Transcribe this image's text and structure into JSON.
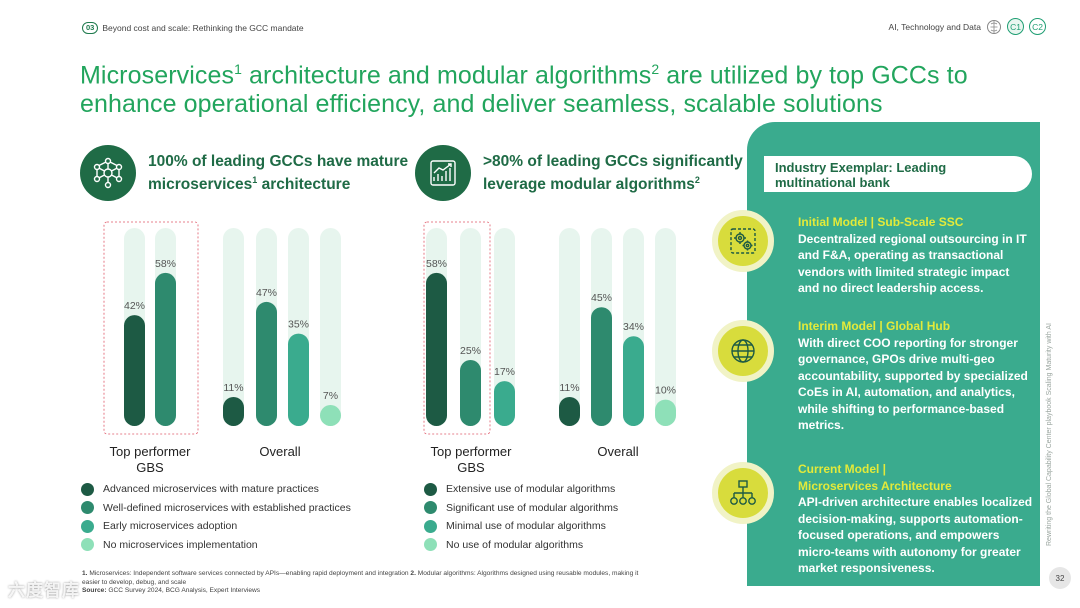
{
  "header": {
    "section_number": "03",
    "section_title": "Beyond cost and scale: Rethinking the GCC mandate",
    "topic": "AI, Technology and Data",
    "chips": [
      "C1",
      "C2"
    ]
  },
  "headline": {
    "part1": "Microservices",
    "sup1": "1",
    "part2": " architecture and modular algorithms",
    "sup2": "2",
    "part3": " are utilized by top GCCs to enhance operational efficiency, and deliver seamless, scalable solutions"
  },
  "left_stat": {
    "line1": "100% of leading GCCs have mature",
    "line2a": "microservices",
    "sup": "1",
    "line2b": " architecture",
    "icon": "network-nodes-icon"
  },
  "right_stat": {
    "line1": ">80% of leading GCCs significantly",
    "line2": "leverage modular algorithms",
    "sup": "2",
    "icon": "growth-chart-icon"
  },
  "colors": {
    "dark": "#1d5a44",
    "mid": "#2e8a6e",
    "teal": "#3aab8e",
    "light": "#8ee0b8",
    "track": "#e7f5ee",
    "green_text": "#22a55d",
    "highlight_border": "#e05a6a"
  },
  "chart_data": [
    {
      "type": "bar",
      "groups": [
        "Top performer GBS",
        "Overall"
      ],
      "series": [
        {
          "name": "Advanced microservices with mature practices",
          "color": "#1d5a44",
          "values": [
            42,
            11
          ]
        },
        {
          "name": "Well-defined microservices with established practices",
          "color": "#2e8a6e",
          "values": [
            58,
            47
          ]
        },
        {
          "name": "Early microservices adoption",
          "color": "#3aab8e",
          "values": [
            null,
            35
          ]
        },
        {
          "name": "No microservices implementation",
          "color": "#8ee0b8",
          "values": [
            null,
            7
          ]
        }
      ],
      "ylim": [
        0,
        75
      ]
    },
    {
      "type": "bar",
      "groups": [
        "Top performer GBS",
        "Overall"
      ],
      "series": [
        {
          "name": "Extensive use of modular algorithms",
          "color": "#1d5a44",
          "values": [
            58,
            11
          ]
        },
        {
          "name": "Significant use of modular algorithms",
          "color": "#2e8a6e",
          "values": [
            25,
            45
          ]
        },
        {
          "name": "Minimal use of modular algorithms",
          "color": "#3aab8e",
          "values": [
            17,
            34
          ]
        },
        {
          "name": "No use of modular algorithms",
          "color": "#8ee0b8",
          "values": [
            null,
            10
          ]
        }
      ],
      "ylim": [
        0,
        75
      ]
    }
  ],
  "group_labels": {
    "left_top_line1": "Top performer",
    "left_top_line2": "GBS",
    "left_overall": "Overall",
    "right_top_line1": "Top performer",
    "right_top_line2": "GBS",
    "right_overall": "Overall"
  },
  "exemplar": {
    "title_line1": "Industry Exemplar: Leading",
    "title_line2": "multinational bank",
    "models": [
      {
        "icon": "gears-icon",
        "title": "Initial Model | Sub-Scale SSC",
        "body": "Decentralized regional outsourcing in IT and F&A, operating as transactional vendors with limited strategic impact and no direct leadership access."
      },
      {
        "icon": "globe-icon",
        "title": "Interim Model | Global Hub",
        "body": "With direct COO reporting for stronger governance, GPOs drive multi-geo accountability, supported by specialized CoEs in AI, automation, and analytics, while shifting to performance-based metrics."
      },
      {
        "icon": "hierarchy-icon",
        "title_line1": "Current Model |",
        "title_line2": "Microservices Architecture",
        "body": "API-driven architecture enables localized decision-making, supports automation-focused operations, and empowers micro-teams with autonomy for greater market responsiveness."
      }
    ]
  },
  "footnotes": {
    "n1": "1.",
    "n1_text": " Microservices: Independent software services connected by APIs—enabling rapid deployment and integration ",
    "n2": "2.",
    "n2_text": " Modular algorithms: Algorithms designed using reusable modules, making it easier to develop, debug, and scale",
    "source_label": "Source:",
    "source_text": " GCC Survey 2024, BCG Analysis, Expert Interviews"
  },
  "side_caption": "Rewriting the Global Capability Center playbook Scaling Maturity with AI",
  "page_number": "32",
  "watermark": "六度智库"
}
